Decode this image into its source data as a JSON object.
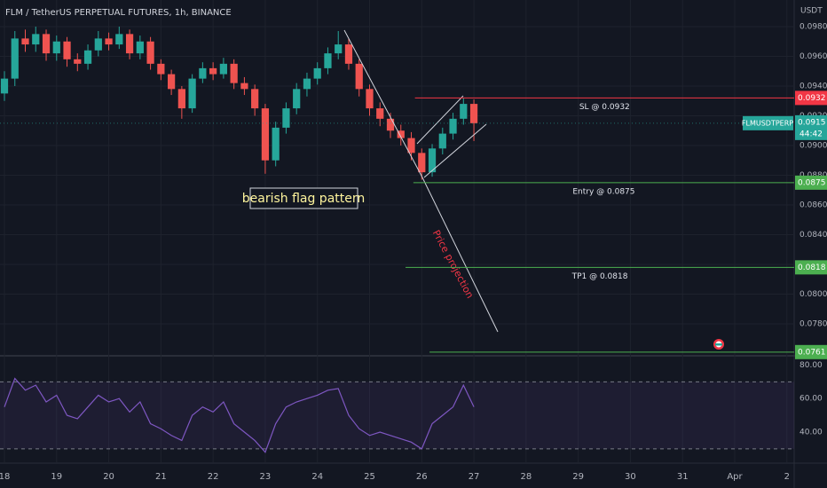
{
  "chart_data": [
    {
      "type": "candlestick",
      "title": "FLM / TetherUS PERPETUAL FUTURES, 1h, BINANCE",
      "unit": "USDT",
      "up_color": "#26a69a",
      "down_color": "#ef5350",
      "x": [
        18.0,
        18.2,
        18.4,
        18.6,
        18.8,
        19.0,
        19.2,
        19.4,
        19.6,
        19.8,
        20.0,
        20.2,
        20.4,
        20.6,
        20.8,
        21.0,
        21.2,
        21.4,
        21.6,
        21.8,
        22.0,
        22.2,
        22.4,
        22.6,
        22.8,
        23.0,
        23.2,
        23.4,
        23.6,
        23.8,
        24.0,
        24.2,
        24.4,
        24.6,
        24.8,
        25.0,
        25.2,
        25.4,
        25.6,
        25.8,
        26.0,
        26.2,
        26.4,
        26.6,
        26.8,
        27.0
      ],
      "open": [
        0.0935,
        0.0945,
        0.0972,
        0.0968,
        0.0975,
        0.0962,
        0.097,
        0.0958,
        0.0955,
        0.0964,
        0.0972,
        0.0968,
        0.0975,
        0.0962,
        0.097,
        0.0955,
        0.0948,
        0.0938,
        0.0925,
        0.0945,
        0.0952,
        0.0948,
        0.0955,
        0.0942,
        0.0938,
        0.0925,
        0.089,
        0.0912,
        0.0925,
        0.0938,
        0.0945,
        0.0952,
        0.0962,
        0.0968,
        0.0955,
        0.0938,
        0.0925,
        0.0918,
        0.091,
        0.0905,
        0.0895,
        0.0882,
        0.0898,
        0.0908,
        0.0918,
        0.0928
      ],
      "high": [
        0.095,
        0.0977,
        0.0978,
        0.098,
        0.0978,
        0.0974,
        0.0973,
        0.0962,
        0.0968,
        0.0977,
        0.0976,
        0.098,
        0.0978,
        0.0974,
        0.0973,
        0.0958,
        0.0951,
        0.094,
        0.0948,
        0.0956,
        0.0956,
        0.0959,
        0.0958,
        0.0946,
        0.0941,
        0.0928,
        0.0916,
        0.0929,
        0.0942,
        0.0949,
        0.0956,
        0.0966,
        0.0977,
        0.0972,
        0.0958,
        0.0941,
        0.0929,
        0.0922,
        0.0914,
        0.0909,
        0.0898,
        0.0901,
        0.0912,
        0.0922,
        0.0932,
        0.0931
      ],
      "low": [
        0.093,
        0.094,
        0.0963,
        0.0963,
        0.0957,
        0.0957,
        0.0953,
        0.095,
        0.0951,
        0.096,
        0.0964,
        0.0965,
        0.0958,
        0.0958,
        0.0951,
        0.0944,
        0.0934,
        0.0918,
        0.0922,
        0.0942,
        0.0944,
        0.0945,
        0.0938,
        0.0934,
        0.092,
        0.0881,
        0.0886,
        0.0908,
        0.0921,
        0.0933,
        0.0941,
        0.0948,
        0.0958,
        0.0951,
        0.0933,
        0.092,
        0.0913,
        0.0905,
        0.09,
        0.089,
        0.0877,
        0.0879,
        0.0894,
        0.0904,
        0.0914,
        0.0903
      ],
      "close": [
        0.0945,
        0.0972,
        0.0968,
        0.0975,
        0.0962,
        0.097,
        0.0958,
        0.0955,
        0.0964,
        0.0972,
        0.0968,
        0.0975,
        0.0962,
        0.097,
        0.0955,
        0.0948,
        0.0938,
        0.0925,
        0.0945,
        0.0952,
        0.0948,
        0.0955,
        0.0942,
        0.0938,
        0.0925,
        0.089,
        0.0912,
        0.0925,
        0.0938,
        0.0945,
        0.0952,
        0.0962,
        0.0968,
        0.0955,
        0.0938,
        0.0925,
        0.0918,
        0.091,
        0.0905,
        0.0895,
        0.0882,
        0.0898,
        0.0908,
        0.0918,
        0.0928,
        0.0915
      ],
      "xlim": [
        17.915,
        33.14
      ],
      "ylim": [
        0.07591,
        0.09979
      ],
      "xticks": [
        18,
        19,
        20,
        21,
        22,
        23,
        24,
        25,
        26,
        27,
        28,
        29,
        30,
        31,
        {
          "value": 32,
          "label": "Apr"
        },
        {
          "value": 33,
          "label": "2"
        }
      ],
      "yticks": [
        {
          "value": 0.098,
          "label": "0.0980"
        },
        {
          "value": 0.096,
          "label": "0.0960"
        },
        {
          "value": 0.094,
          "label": "0.0940"
        },
        {
          "value": 0.092,
          "label": "0.0920"
        },
        {
          "value": 0.09,
          "label": "0.0900"
        },
        {
          "value": 0.088,
          "label": "0.0880"
        },
        {
          "value": 0.086,
          "label": "0.0860"
        },
        {
          "value": 0.084,
          "label": "0.0840"
        },
        {
          "value": 0.082,
          "label": "0.0820"
        },
        {
          "value": 0.08,
          "label": "0.0800"
        },
        {
          "value": 0.078,
          "label": "0.0780"
        }
      ],
      "levels": [
        {
          "label": "SL @ 0.0932",
          "value": 0.0932,
          "from": 25.87,
          "color": "#f23645"
        },
        {
          "label": "Entry @ 0.0875",
          "value": 0.0875,
          "from": 25.84,
          "color": "#4caf50"
        },
        {
          "label": "TP1 @ 0.0818",
          "value": 0.0818,
          "from": 25.69,
          "color": "#4caf50"
        },
        {
          "value": 0.0761,
          "from": 26.15,
          "color": "#4caf50"
        }
      ],
      "last": {
        "symbol": "FLMUSDTPERP",
        "value": 0.0915,
        "countdown": "44:42"
      },
      "annotations": [
        "bearish flag pattern",
        "Price projection"
      ]
    },
    {
      "type": "line",
      "color": "#7e57c2",
      "x": [
        18.0,
        18.2,
        18.4,
        18.6,
        18.8,
        19.0,
        19.2,
        19.4,
        19.6,
        19.8,
        20.0,
        20.2,
        20.4,
        20.6,
        20.8,
        21.0,
        21.2,
        21.4,
        21.6,
        21.8,
        22.0,
        22.2,
        22.4,
        22.6,
        22.8,
        23.0,
        23.2,
        23.4,
        23.6,
        23.8,
        24.0,
        24.2,
        24.4,
        24.6,
        24.8,
        25.0,
        25.2,
        25.4,
        25.6,
        25.8,
        26.0,
        26.2,
        26.4,
        26.6,
        26.8,
        27.0
      ],
      "values": [
        55,
        72,
        65,
        68,
        58,
        62,
        50,
        48,
        55,
        62,
        58,
        60,
        52,
        58,
        45,
        42,
        38,
        35,
        50,
        55,
        52,
        58,
        45,
        40,
        35,
        28,
        45,
        55,
        58,
        60,
        62,
        65,
        66,
        50,
        42,
        38,
        40,
        38,
        36,
        34,
        30,
        45,
        50,
        55,
        68,
        55
      ],
      "xlim": [
        17.915,
        33.14
      ],
      "ylim": [
        22,
        85
      ],
      "yticks": [
        {
          "value": 80,
          "label": "80.00"
        },
        {
          "value": 60,
          "label": "60.00"
        },
        {
          "value": 40,
          "label": "40.00"
        }
      ],
      "bands": [
        70,
        30
      ]
    }
  ]
}
